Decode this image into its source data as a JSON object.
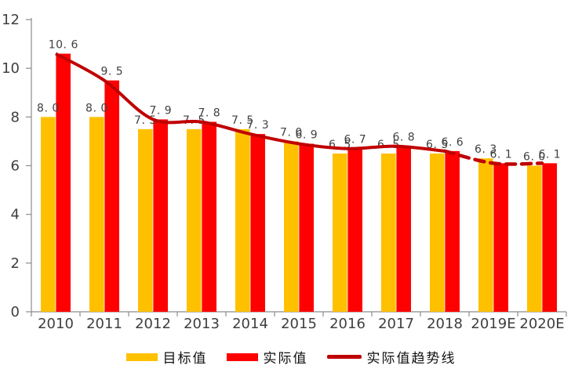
{
  "chart_data": {
    "type": "bar",
    "title": "",
    "categories": [
      "2010",
      "2011",
      "2012",
      "2013",
      "2014",
      "2015",
      "2016",
      "2017",
      "2018",
      "2019E",
      "2020E"
    ],
    "series": [
      {
        "name": "目标值",
        "chart_type": "bar",
        "color": "#FFC000",
        "values": [
          8.0,
          8.0,
          7.5,
          7.5,
          7.5,
          7.0,
          6.5,
          6.5,
          6.5,
          6.3,
          6.0
        ]
      },
      {
        "name": "实际值",
        "chart_type": "bar",
        "color": "#FF0000",
        "values": [
          10.6,
          9.5,
          7.9,
          7.8,
          7.3,
          6.9,
          6.7,
          6.8,
          6.6,
          6.1,
          6.1
        ]
      },
      {
        "name": "实际值趋势线",
        "chart_type": "line",
        "color": "#C00000",
        "values": [
          10.6,
          9.5,
          7.9,
          7.8,
          7.3,
          6.9,
          6.7,
          6.8,
          6.6,
          6.1,
          6.1
        ],
        "dashed_from_index": 8
      }
    ],
    "y_axis": {
      "min": 0,
      "max": 12,
      "tick_step": 2,
      "ticks": [
        0,
        2,
        4,
        6,
        8,
        10,
        12
      ]
    },
    "data_labels": {
      "show": true,
      "decimals": 1
    },
    "legend_position": "bottom",
    "grid": "off",
    "colors": {
      "axis": "#8C8C8C",
      "tick_text": "#3F3F3F",
      "data_label_text": "#404040",
      "background": "#FFFFFF"
    }
  }
}
